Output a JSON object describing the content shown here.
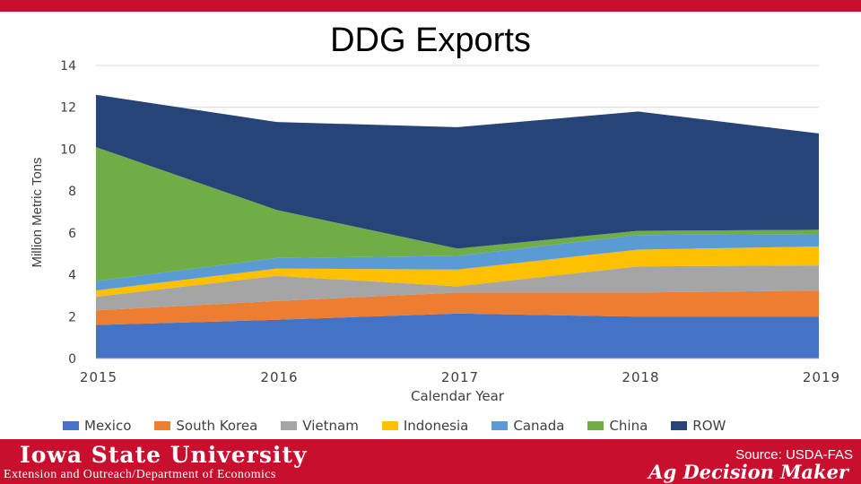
{
  "slide": {
    "title": "DDG Exports",
    "university": "Iowa State University",
    "department": "Extension and Outreach/Department of Economics",
    "source": "Source: USDA-FAS",
    "brand": "Ag Decision Maker",
    "accent_color": "#c8102e"
  },
  "chart_data": {
    "type": "area",
    "stacked": true,
    "title": "DDG Exports",
    "xlabel": "Calendar Year",
    "ylabel": "Million Metric Tons",
    "x": [
      "2015",
      "2016",
      "2017",
      "2018",
      "2019"
    ],
    "ylim": [
      0,
      14
    ],
    "yticks": [
      0,
      2,
      4,
      6,
      8,
      10,
      12,
      14
    ],
    "grid": true,
    "legend_position": "bottom",
    "series": [
      {
        "name": "Mexico",
        "color": "#4472c4",
        "values": [
          1.6,
          1.85,
          2.15,
          2.0,
          2.0
        ]
      },
      {
        "name": "South Korea",
        "color": "#ed7d31",
        "values": [
          0.7,
          0.9,
          1.0,
          1.15,
          1.25
        ]
      },
      {
        "name": "Vietnam",
        "color": "#a5a5a5",
        "values": [
          0.65,
          1.2,
          0.3,
          1.25,
          1.2
        ]
      },
      {
        "name": "Indonesia",
        "color": "#ffc000",
        "values": [
          0.3,
          0.35,
          0.8,
          0.8,
          0.9
        ]
      },
      {
        "name": "Canada",
        "color": "#5b9bd5",
        "values": [
          0.45,
          0.5,
          0.65,
          0.7,
          0.6
        ]
      },
      {
        "name": "China",
        "color": "#70ad47",
        "values": [
          6.4,
          2.3,
          0.35,
          0.2,
          0.2
        ]
      },
      {
        "name": "ROW",
        "color": "#264478",
        "values": [
          2.5,
          4.2,
          5.8,
          5.7,
          4.6
        ]
      }
    ]
  }
}
